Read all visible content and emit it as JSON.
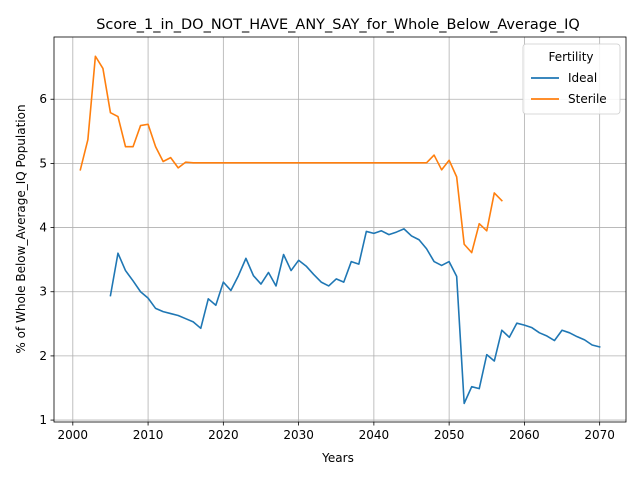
{
  "chart_data": {
    "type": "line",
    "title": "Score_1_in_DO_NOT_HAVE_ANY_SAY_for_Whole_Below_Average_IQ",
    "xlabel": "Years",
    "ylabel": "% of Whole Below_Average_IQ Population",
    "xlim": [
      1997.5,
      2073.5
    ],
    "ylim": [
      0.97,
      6.97
    ],
    "xticks": [
      2000,
      2010,
      2020,
      2030,
      2040,
      2050,
      2060,
      2070
    ],
    "yticks": [
      1,
      2,
      3,
      4,
      5,
      6
    ],
    "grid": true,
    "legend": {
      "title": "Fertility",
      "placement": "top-right"
    },
    "series": [
      {
        "name": "Ideal",
        "color": "#1f77b4",
        "x": [
          2005,
          2006,
          2007,
          2008,
          2009,
          2010,
          2011,
          2012,
          2013,
          2014,
          2015,
          2016,
          2017,
          2018,
          2019,
          2020,
          2021,
          2022,
          2023,
          2024,
          2025,
          2026,
          2027,
          2028,
          2029,
          2030,
          2031,
          2032,
          2033,
          2034,
          2035,
          2036,
          2037,
          2038,
          2039,
          2040,
          2041,
          2042,
          2043,
          2044,
          2045,
          2046,
          2047,
          2048,
          2049,
          2050,
          2051,
          2052,
          2053,
          2054,
          2055,
          2056,
          2057,
          2058,
          2059,
          2060,
          2061,
          2062,
          2063,
          2064,
          2065,
          2066,
          2067,
          2068,
          2069,
          2070
        ],
        "y": [
          2.94,
          3.6,
          3.33,
          3.17,
          3.0,
          2.9,
          2.74,
          2.69,
          2.66,
          2.63,
          2.58,
          2.53,
          2.43,
          2.89,
          2.79,
          3.15,
          3.02,
          3.25,
          3.52,
          3.25,
          3.12,
          3.3,
          3.09,
          3.58,
          3.33,
          3.49,
          3.4,
          3.27,
          3.15,
          3.09,
          3.2,
          3.15,
          3.47,
          3.43,
          3.94,
          3.91,
          3.95,
          3.89,
          3.93,
          3.98,
          3.87,
          3.81,
          3.67,
          3.47,
          3.41,
          3.47,
          3.24,
          1.26,
          1.52,
          1.49,
          2.02,
          1.92,
          2.4,
          2.29,
          2.51,
          2.48,
          2.44,
          2.36,
          2.31,
          2.24,
          2.4,
          2.36,
          2.3,
          2.25,
          2.17,
          2.14
        ]
      },
      {
        "name": "Sterile",
        "color": "#ff7f0e",
        "x": [
          2001,
          2002,
          2003,
          2004,
          2005,
          2006,
          2007,
          2008,
          2009,
          2010,
          2011,
          2012,
          2013,
          2014,
          2015,
          2016,
          2017,
          2018,
          2019,
          2020,
          2021,
          2022,
          2023,
          2024,
          2025,
          2026,
          2027,
          2028,
          2029,
          2030,
          2031,
          2032,
          2033,
          2034,
          2035,
          2036,
          2037,
          2038,
          2039,
          2040,
          2041,
          2042,
          2043,
          2044,
          2045,
          2046,
          2047,
          2048,
          2049,
          2050,
          2051,
          2052,
          2053,
          2054,
          2055,
          2056,
          2057
        ],
        "y": [
          4.9,
          5.37,
          6.67,
          6.48,
          5.79,
          5.73,
          5.26,
          5.26,
          5.59,
          5.61,
          5.26,
          5.03,
          5.09,
          4.93,
          5.02,
          5.01,
          5.01,
          5.01,
          5.01,
          5.01,
          5.01,
          5.01,
          5.01,
          5.01,
          5.01,
          5.01,
          5.01,
          5.01,
          5.01,
          5.01,
          5.01,
          5.01,
          5.01,
          5.01,
          5.01,
          5.01,
          5.01,
          5.01,
          5.01,
          5.01,
          5.01,
          5.01,
          5.01,
          5.01,
          5.01,
          5.01,
          5.01,
          5.13,
          4.9,
          5.05,
          4.79,
          3.74,
          3.61,
          4.06,
          3.95,
          4.54,
          4.42
        ]
      }
    ]
  }
}
